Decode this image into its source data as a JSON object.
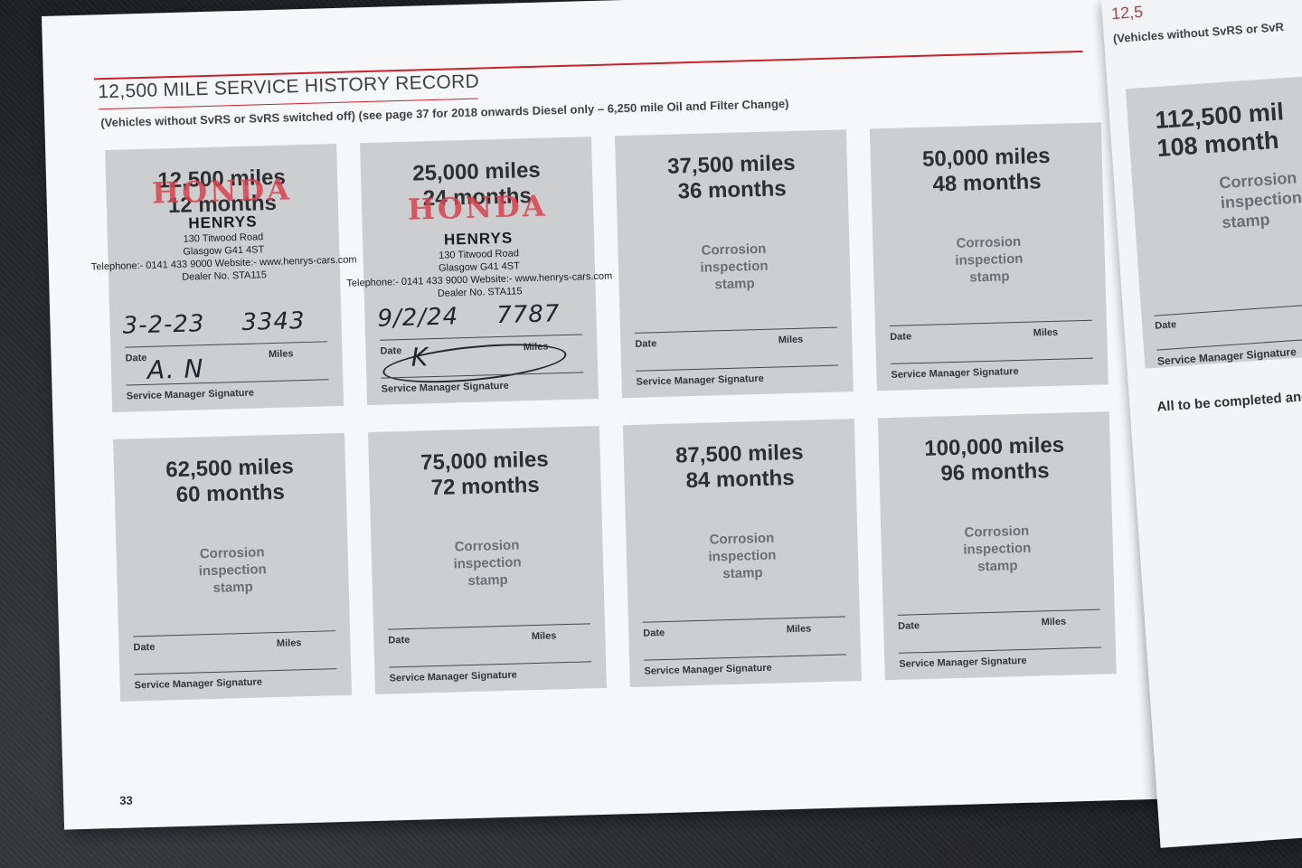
{
  "left_page": {
    "title": "12,500 MILE SERVICE HISTORY RECORD",
    "subtitle": "(Vehicles without SvRS or SvRS switched off) (see page 37 for 2018 onwards Diesel only – 6,250 mile Oil and Filter Change)",
    "page_number": "33",
    "labels": {
      "date": "Date",
      "miles": "Miles",
      "signature": "Service Manager Signature",
      "stamp_hint": [
        "Corrosion",
        "inspection",
        "stamp"
      ]
    },
    "cards": [
      {
        "miles": "12,500 miles",
        "months": "12 months",
        "hw_date": "3-2-23",
        "hw_miles": "3343",
        "hw_sig": "A. N"
      },
      {
        "miles": "25,000 miles",
        "months": "24 months",
        "hw_date": "9/2/24",
        "hw_miles": "7787",
        "hw_sig": "K"
      },
      {
        "miles": "37,500 miles",
        "months": "36 months"
      },
      {
        "miles": "50,000 miles",
        "months": "48 months"
      },
      {
        "miles": "62,500 miles",
        "months": "60 months"
      },
      {
        "miles": "75,000 miles",
        "months": "72 months"
      },
      {
        "miles": "87,500 miles",
        "months": "84 months"
      },
      {
        "miles": "100,000 miles",
        "months": "96 months"
      }
    ],
    "dealer_stamp": {
      "brand": "HONDA",
      "dealer": "HENRYS",
      "address1": "130 Titwood Road",
      "address2": "Glasgow G41 4ST",
      "contact": "Telephone:- 0141 433 9000 Website:- www.henrys-cars.com",
      "dealer_no": "Dealer No. STA115"
    }
  },
  "right_page": {
    "heading_fragment": "12,5",
    "subtitle": "(Vehicles without SvRS or SvR",
    "card": {
      "miles": "112,500 mil",
      "months": "108 month"
    },
    "labels": {
      "date": "Date",
      "signature": "Service Manager Signature"
    },
    "note": "All to be completed and"
  },
  "colors": {
    "accent_red": "#c8202c",
    "card_grey": "#cdced0",
    "stamp_red": "#d9434d"
  }
}
